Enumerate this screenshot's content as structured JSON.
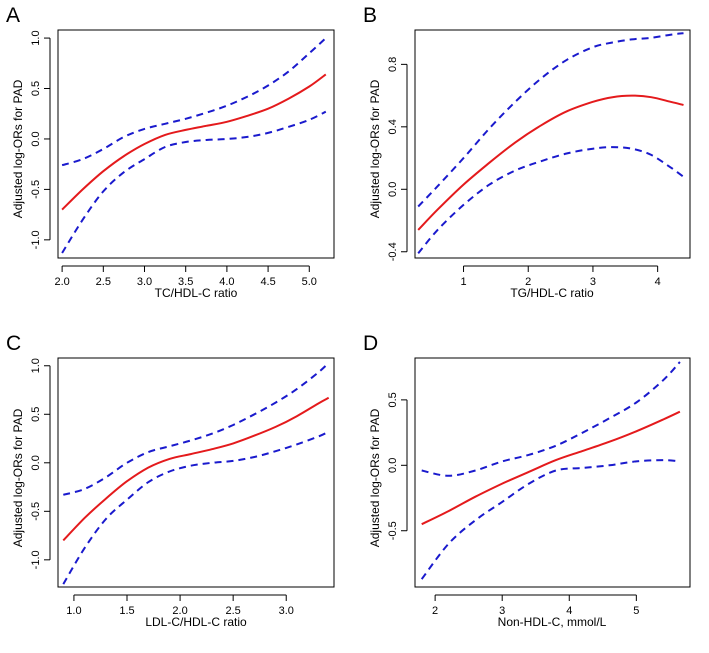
{
  "colors": {
    "estimate": "#e41a1c",
    "ci": "#1a1acd"
  },
  "chart_data": [
    {
      "type": "line",
      "panel": "A",
      "xlabel": "TC/HDL-C ratio",
      "ylabel": "Adjusted log-ORs for PAD",
      "xlim": [
        1.95,
        5.3
      ],
      "ylim": [
        -1.18,
        1.08
      ],
      "xticks": [
        2.0,
        2.5,
        3.0,
        3.5,
        4.0,
        4.5,
        5.0
      ],
      "xtick_labels": [
        "2.0",
        "2.5",
        "3.0",
        "3.5",
        "4.0",
        "4.5",
        "5.0"
      ],
      "yticks": [
        -1.0,
        -0.5,
        0.0,
        0.5,
        1.0
      ],
      "ytick_labels": [
        "-1.0",
        "-0.5",
        "0.0",
        "0.5",
        "1.0"
      ],
      "series": [
        {
          "name": "Adjusted log-OR",
          "style": "solid",
          "x": [
            2.0,
            2.25,
            2.5,
            2.75,
            3.0,
            3.25,
            3.5,
            3.75,
            4.0,
            4.25,
            4.5,
            4.75,
            5.0,
            5.2
          ],
          "y": [
            -0.7,
            -0.5,
            -0.32,
            -0.17,
            -0.05,
            0.04,
            0.09,
            0.13,
            0.17,
            0.23,
            0.3,
            0.4,
            0.52,
            0.64
          ]
        },
        {
          "name": "95% CI upper",
          "style": "dashed",
          "x": [
            2.0,
            2.25,
            2.5,
            2.75,
            3.0,
            3.25,
            3.5,
            3.75,
            4.0,
            4.25,
            4.5,
            4.75,
            5.0,
            5.2
          ],
          "y": [
            -0.26,
            -0.2,
            -0.1,
            0.02,
            0.1,
            0.15,
            0.2,
            0.26,
            0.33,
            0.42,
            0.53,
            0.67,
            0.85,
            1.0
          ]
        },
        {
          "name": "95% CI lower",
          "style": "dashed",
          "x": [
            2.0,
            2.25,
            2.5,
            2.75,
            3.0,
            3.25,
            3.5,
            3.75,
            4.0,
            4.25,
            4.5,
            4.75,
            5.0,
            5.2
          ],
          "y": [
            -1.13,
            -0.8,
            -0.52,
            -0.33,
            -0.2,
            -0.08,
            -0.03,
            -0.01,
            0.0,
            0.02,
            0.06,
            0.12,
            0.19,
            0.27
          ]
        }
      ]
    },
    {
      "type": "line",
      "panel": "B",
      "xlabel": "TG/HDL-C ratio",
      "ylabel": "Adjusted log-ORs for PAD",
      "xlim": [
        0.25,
        4.5
      ],
      "ylim": [
        -0.44,
        1.02
      ],
      "xticks": [
        1,
        2,
        3,
        4
      ],
      "xtick_labels": [
        "1",
        "2",
        "3",
        "4"
      ],
      "yticks": [
        -0.4,
        0.0,
        0.4,
        0.8
      ],
      "ytick_labels": [
        "-0.4",
        "0.0",
        "0.4",
        "0.8"
      ],
      "series": [
        {
          "name": "Adjusted log-OR",
          "style": "solid",
          "x": [
            0.3,
            0.6,
            1.0,
            1.4,
            1.8,
            2.2,
            2.6,
            3.0,
            3.3,
            3.6,
            3.9,
            4.2,
            4.4
          ],
          "y": [
            -0.26,
            -0.13,
            0.03,
            0.17,
            0.3,
            0.41,
            0.5,
            0.56,
            0.59,
            0.6,
            0.59,
            0.56,
            0.54
          ]
        },
        {
          "name": "95% CI upper",
          "style": "dashed",
          "x": [
            0.3,
            0.6,
            1.0,
            1.4,
            1.8,
            2.2,
            2.6,
            3.0,
            3.3,
            3.6,
            3.9,
            4.2,
            4.4
          ],
          "y": [
            -0.11,
            0.02,
            0.2,
            0.39,
            0.56,
            0.71,
            0.83,
            0.91,
            0.94,
            0.96,
            0.97,
            0.99,
            1.0
          ]
        },
        {
          "name": "95% CI lower",
          "style": "dashed",
          "x": [
            0.3,
            0.6,
            1.0,
            1.4,
            1.8,
            2.2,
            2.6,
            3.0,
            3.3,
            3.6,
            3.9,
            4.2,
            4.4
          ],
          "y": [
            -0.41,
            -0.26,
            -0.1,
            0.03,
            0.12,
            0.18,
            0.23,
            0.26,
            0.27,
            0.26,
            0.22,
            0.14,
            0.08
          ]
        }
      ]
    },
    {
      "type": "line",
      "panel": "C",
      "xlabel": "LDL-C/HDL-C ratio",
      "ylabel": "Adjusted log-ORs for PAD",
      "xlim": [
        0.85,
        3.45
      ],
      "ylim": [
        -1.28,
        1.08
      ],
      "xticks": [
        1.0,
        1.5,
        2.0,
        2.5,
        3.0
      ],
      "xtick_labels": [
        "1.0",
        "1.5",
        "2.0",
        "2.5",
        "3.0"
      ],
      "yticks": [
        -1.0,
        -0.5,
        0.0,
        0.5,
        1.0
      ],
      "ytick_labels": [
        "-1.0",
        "-0.5",
        "0.0",
        "0.5",
        "1.0"
      ],
      "series": [
        {
          "name": "Adjusted log-OR",
          "style": "solid",
          "x": [
            0.9,
            1.1,
            1.3,
            1.5,
            1.7,
            1.9,
            2.1,
            2.3,
            2.5,
            2.7,
            2.9,
            3.1,
            3.3,
            3.4
          ],
          "y": [
            -0.8,
            -0.57,
            -0.37,
            -0.19,
            -0.05,
            0.04,
            0.09,
            0.14,
            0.2,
            0.28,
            0.37,
            0.48,
            0.61,
            0.67
          ]
        },
        {
          "name": "95% CI upper",
          "style": "dashed",
          "x": [
            0.9,
            1.1,
            1.3,
            1.5,
            1.7,
            1.9,
            2.1,
            2.3,
            2.5,
            2.7,
            2.9,
            3.1,
            3.3,
            3.4
          ],
          "y": [
            -0.33,
            -0.27,
            -0.15,
            0.0,
            0.11,
            0.17,
            0.23,
            0.3,
            0.39,
            0.5,
            0.62,
            0.76,
            0.93,
            1.03
          ]
        },
        {
          "name": "95% CI lower",
          "style": "dashed",
          "x": [
            0.9,
            1.1,
            1.3,
            1.5,
            1.7,
            1.9,
            2.1,
            2.3,
            2.5,
            2.7,
            2.9,
            3.1,
            3.3,
            3.4
          ],
          "y": [
            -1.25,
            -0.88,
            -0.58,
            -0.38,
            -0.2,
            -0.09,
            -0.03,
            0.0,
            0.02,
            0.06,
            0.12,
            0.19,
            0.27,
            0.32
          ]
        }
      ]
    },
    {
      "type": "line",
      "panel": "D",
      "xlabel": "Non-HDL-C, mmol/L",
      "ylabel": "Adjusted log-ORs for PAD",
      "xlim": [
        1.7,
        5.8
      ],
      "ylim": [
        -0.93,
        0.82
      ],
      "xticks": [
        2,
        3,
        4,
        5
      ],
      "xtick_labels": [
        "2",
        "3",
        "4",
        "5"
      ],
      "yticks": [
        -0.5,
        0.0,
        0.5
      ],
      "ytick_labels": [
        "-0.5",
        "0.0",
        "0.5"
      ],
      "series": [
        {
          "name": "Adjusted log-OR",
          "style": "solid",
          "x": [
            1.8,
            2.2,
            2.6,
            3.0,
            3.4,
            3.8,
            4.2,
            4.6,
            5.0,
            5.4,
            5.65
          ],
          "y": [
            -0.45,
            -0.35,
            -0.24,
            -0.14,
            -0.05,
            0.04,
            0.11,
            0.18,
            0.26,
            0.35,
            0.41
          ]
        },
        {
          "name": "95% CI upper",
          "style": "dashed",
          "x": [
            1.8,
            2.2,
            2.6,
            3.0,
            3.4,
            3.8,
            4.2,
            4.6,
            5.0,
            5.4,
            5.65
          ],
          "y": [
            -0.04,
            -0.08,
            -0.04,
            0.03,
            0.08,
            0.15,
            0.25,
            0.36,
            0.48,
            0.65,
            0.79
          ]
        },
        {
          "name": "95% CI lower",
          "style": "dashed",
          "x": [
            1.8,
            2.2,
            2.6,
            3.0,
            3.4,
            3.8,
            4.2,
            4.6,
            5.0,
            5.4,
            5.65
          ],
          "y": [
            -0.87,
            -0.6,
            -0.42,
            -0.28,
            -0.14,
            -0.04,
            -0.02,
            0.0,
            0.03,
            0.04,
            0.03
          ]
        }
      ]
    }
  ]
}
